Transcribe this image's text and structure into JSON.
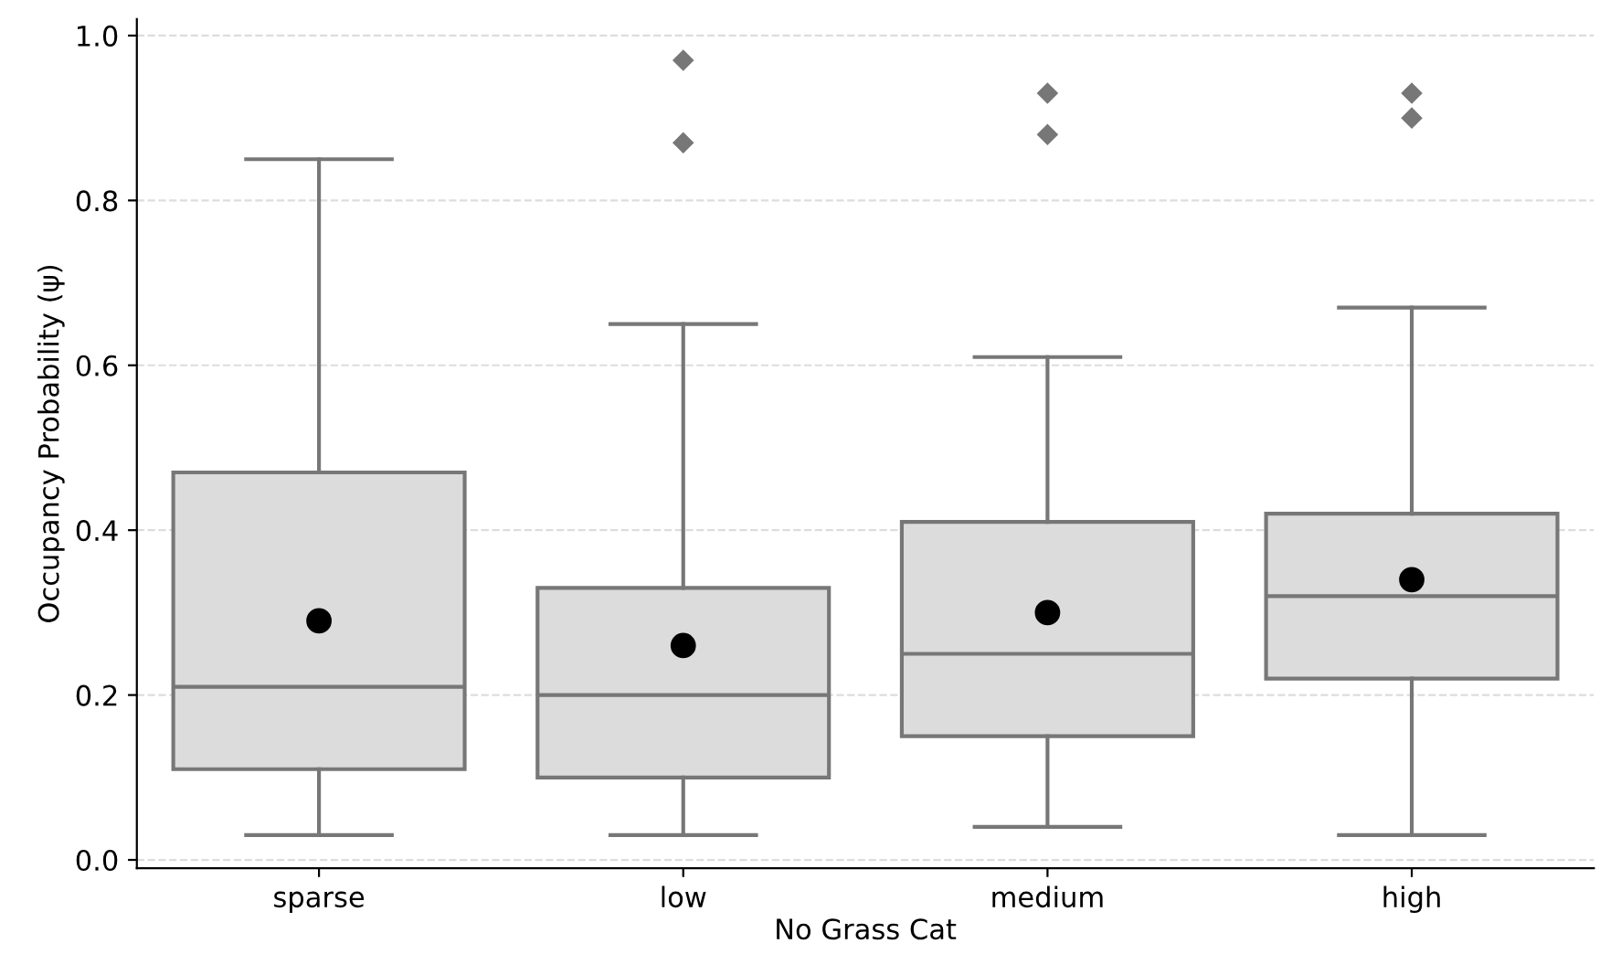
{
  "chart_data": {
    "type": "box",
    "xlabel": "No Grass Cat",
    "ylabel": "Occupancy Probability (ψ)",
    "categories": [
      "sparse",
      "low",
      "medium",
      "high"
    ],
    "boxes": [
      {
        "low": 0.03,
        "q1": 0.11,
        "median": 0.21,
        "q3": 0.47,
        "high": 0.85,
        "mean": 0.29
      },
      {
        "low": 0.03,
        "q1": 0.1,
        "median": 0.2,
        "q3": 0.33,
        "high": 0.65,
        "mean": 0.26,
        "outliers": [
          0.97,
          0.87
        ]
      },
      {
        "low": 0.04,
        "q1": 0.15,
        "median": 0.25,
        "q3": 0.41,
        "high": 0.61,
        "mean": 0.3,
        "outliers": [
          0.93,
          0.88
        ]
      },
      {
        "low": 0.03,
        "q1": 0.22,
        "median": 0.32,
        "q3": 0.42,
        "high": 0.67,
        "mean": 0.34,
        "outliers": [
          0.93,
          0.9
        ]
      }
    ],
    "color": "#dcdcdc",
    "ylim": [
      -0.01,
      1.02
    ],
    "yticks": [
      {
        "value": 0,
        "label": "0.0"
      },
      0.2,
      0.4,
      0.6,
      0.8,
      {
        "value": 1,
        "label": "1.0"
      }
    ],
    "grid": "y",
    "marker": "diamond"
  }
}
